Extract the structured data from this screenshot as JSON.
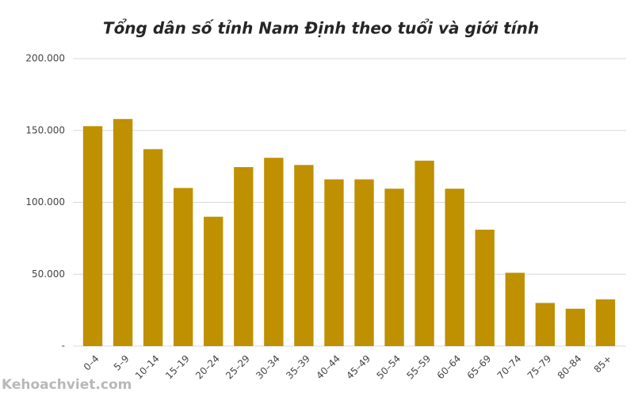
{
  "chart_data": {
    "type": "bar",
    "title": "Tổng dân số tỉnh Nam Định theo tuổi và giới tính",
    "watermark": "Kehoachviet.com",
    "categories": [
      "0–4",
      "5–9",
      "10–14",
      "15–19",
      "20–24",
      "25–29",
      "30–34",
      "35–39",
      "40–44",
      "45–49",
      "50–54",
      "55–59",
      "60–64",
      "65–69",
      "70–74",
      "75–79",
      "80–84",
      "85+"
    ],
    "values": [
      153000,
      158000,
      137000,
      110000,
      90000,
      124500,
      131000,
      126000,
      116000,
      116000,
      109500,
      129000,
      109500,
      81000,
      51000,
      30000,
      26000,
      32500
    ],
    "color": "#bf9000",
    "ylim": [
      0,
      200000
    ],
    "yticks": [
      {
        "value": 0,
        "label": "-"
      },
      {
        "value": 50000,
        "label": "50.000"
      },
      {
        "value": 100000,
        "label": "100.000"
      },
      {
        "value": 150000,
        "label": "150.000"
      },
      {
        "value": 200000,
        "label": "200.000"
      }
    ],
    "grid": true
  }
}
